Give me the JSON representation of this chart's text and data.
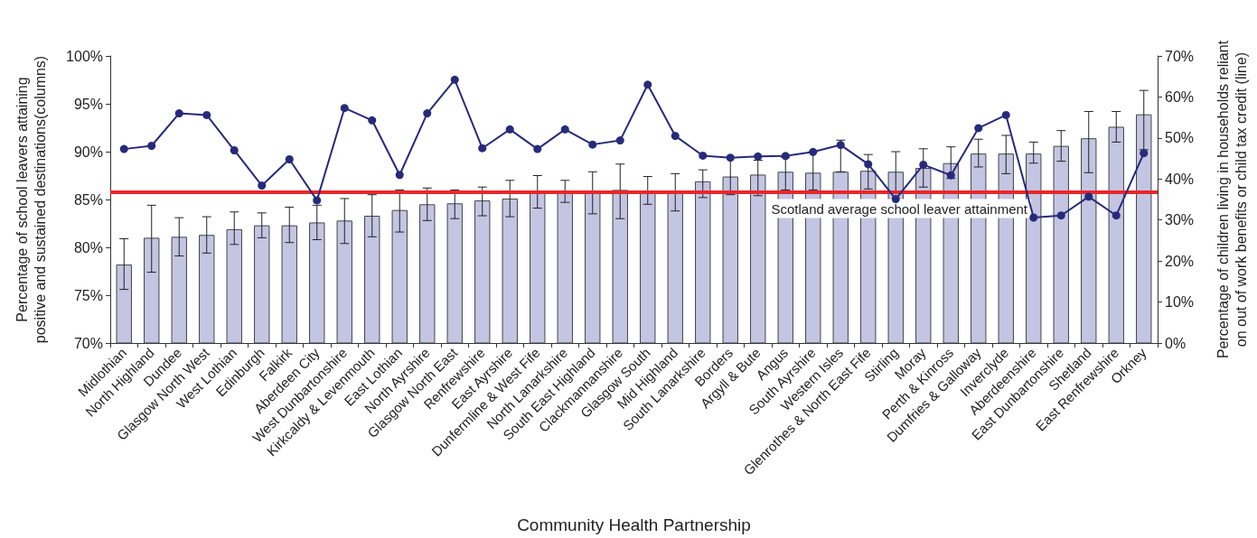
{
  "chart_data": {
    "type": "bar",
    "xlabel": "Community Health Partnership",
    "ylabel": "Percentage of school leavers attaining\npositive and sustained destinations(columns)",
    "y2label": "Percentage of children living in households reliant\non out of work benefits or child tax credit (line)",
    "categories": [
      "Midlothian",
      "North Highland",
      "Dundee",
      "Glasgow North West",
      "West Lothian",
      "Edinburgh",
      "Falkirk",
      "Aberdeen City",
      "West Dunbartonshire",
      "Kirkcaldy & Levenmouth",
      "East Lothian",
      "North Ayrshire",
      "Glasgow North East",
      "Renfrewshire",
      "East Ayrshire",
      "Dunfermline & West Fife",
      "North Lanarkshire",
      "South East Highland",
      "Clackmannanshire",
      "Glasgow South",
      "Mid Highland",
      "South Lanarkshire",
      "Borders",
      "Argyll & Bute",
      "Angus",
      "South Ayrshire",
      "Western Isles",
      "Glenrothes & North East Fife",
      "Stirling",
      "Moray",
      "Perth & Kinross",
      "Dumfries & Galloway",
      "Inverclyde",
      "Aberdeenshire",
      "East Dunbartonshire",
      "Shetland",
      "East Renfrewshire",
      "Orkney"
    ],
    "series": [
      {
        "color": "#c3c5e2",
        "values": [
          78.2,
          81.0,
          81.1,
          81.3,
          81.9,
          82.3,
          82.3,
          82.6,
          82.8,
          83.3,
          83.9,
          84.5,
          84.6,
          84.9,
          85.1,
          85.8,
          85.9,
          85.8,
          86.0,
          85.9,
          85.8,
          86.9,
          87.4,
          87.6,
          87.9,
          87.8,
          87.9,
          88.0,
          87.9,
          88.3,
          88.8,
          89.8,
          89.8,
          89.8,
          90.6,
          91.4,
          92.6,
          93.9
        ],
        "errors": [
          [
            75.6,
            80.9
          ],
          [
            77.4,
            84.4
          ],
          [
            79.1,
            83.1
          ],
          [
            79.4,
            83.2
          ],
          [
            80.3,
            83.7
          ],
          [
            81.0,
            83.6
          ],
          [
            80.5,
            84.2
          ],
          [
            80.8,
            84.4
          ],
          [
            80.4,
            85.1
          ],
          [
            81.1,
            85.5
          ],
          [
            81.6,
            86.0
          ],
          [
            82.8,
            86.2
          ],
          [
            83.0,
            86.0
          ],
          [
            83.3,
            86.3
          ],
          [
            83.2,
            87.0
          ],
          [
            84.1,
            87.5
          ],
          [
            84.7,
            87.0
          ],
          [
            83.5,
            87.9
          ],
          [
            83.0,
            88.7
          ],
          [
            84.5,
            87.4
          ],
          [
            83.8,
            87.7
          ],
          [
            85.2,
            88.1
          ],
          [
            85.5,
            89.4
          ],
          [
            85.4,
            89.1
          ],
          [
            86.0,
            89.4
          ],
          [
            86.0,
            90.0
          ],
          [
            87.9,
            91.2
          ],
          [
            86.1,
            89.7
          ],
          [
            85.8,
            90.0
          ],
          [
            86.3,
            90.3
          ],
          [
            87.2,
            90.5
          ],
          [
            88.4,
            91.3
          ],
          [
            87.7,
            91.7
          ],
          [
            88.8,
            91.0
          ],
          [
            89.0,
            92.2
          ],
          [
            87.8,
            94.2
          ],
          [
            91.0,
            94.2
          ],
          [
            90.2,
            96.4
          ]
        ]
      },
      {
        "type": "line",
        "axis": "y2",
        "color": "#272a7a",
        "values": [
          47.3,
          48.1,
          56.0,
          55.6,
          47.0,
          38.4,
          44.8,
          34.8,
          57.3,
          54.3,
          41.0,
          56.0,
          64.2,
          47.5,
          52.1,
          47.3,
          52.1,
          48.4,
          49.4,
          63.0,
          50.5,
          45.7,
          45.2,
          45.5,
          45.6,
          46.6,
          48.3,
          43.6,
          35.1,
          43.5,
          40.9,
          52.4,
          55.6,
          30.6,
          31.1,
          35.7,
          31.1,
          46.3
        ]
      }
    ],
    "ylim": [
      70,
      100
    ],
    "yticks": [
      {
        "value": 70,
        "label": "70%"
      },
      {
        "value": 75,
        "label": "75%"
      },
      {
        "value": 80,
        "label": "80%"
      },
      {
        "value": 85,
        "label": "85%"
      },
      {
        "value": 90,
        "label": "90%"
      },
      {
        "value": 95,
        "label": "95%"
      },
      {
        "value": 100,
        "label": "100%"
      }
    ],
    "y2lim": [
      0,
      70
    ],
    "y2ticks": [
      {
        "value": 0,
        "label": "0%"
      },
      {
        "value": 10,
        "label": "10%"
      },
      {
        "value": 20,
        "label": "20%"
      },
      {
        "value": 30,
        "label": "30%"
      },
      {
        "value": 40,
        "label": "40%"
      },
      {
        "value": 50,
        "label": "50%"
      },
      {
        "value": 60,
        "label": "60%"
      },
      {
        "value": 70,
        "label": "70%"
      }
    ],
    "ref_lines": [
      {
        "axis": "y",
        "value": 85.8,
        "label": "Scotland average school leaver attainment",
        "color": "#e8272a"
      }
    ],
    "marker": "circle",
    "grid": false
  }
}
